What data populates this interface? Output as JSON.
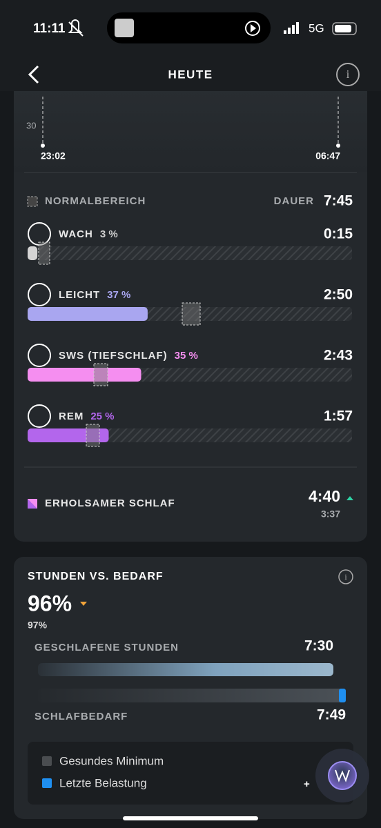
{
  "status_bar": {
    "time": "11:11",
    "network": "5G"
  },
  "nav": {
    "title": "HEUTE"
  },
  "chart": {
    "y_label": "30",
    "start": "23:02",
    "end": "06:47"
  },
  "stages_header": {
    "label": "NORMALBEREICH",
    "duration_label": "DAUER",
    "duration": "7:45"
  },
  "stages": [
    {
      "name": "WACH",
      "share": 3,
      "share_label": "3 %",
      "time": "0:15",
      "color": "#d4d4d4",
      "text_color": "#cfcfcf"
    },
    {
      "name": "LEICHT",
      "share": 37,
      "share_label": "37 %",
      "time": "2:50",
      "color": "#a9a6f0",
      "text_color": "#a9a6f0"
    },
    {
      "name": "SWS (TIEFSCHLAF)",
      "share": 35,
      "share_label": "35 %",
      "time": "2:43",
      "color": "#f58ef0",
      "text_color": "#f58ef0"
    },
    {
      "name": "REM",
      "share": 25,
      "share_label": "25 %",
      "time": "1:57",
      "color": "#b366ec",
      "text_color": "#b366ec"
    }
  ],
  "restorative": {
    "label": "ERHOLSAMER SCHLAF",
    "value": "4:40",
    "previous": "3:37"
  },
  "hours_card": {
    "title": "STUNDEN VS. BEDARF",
    "value": "96%",
    "previous": "97%",
    "slept_label": "GESCHLAFENE STUNDEN",
    "slept": "7:30",
    "need_label": "SCHLAFBEDARF",
    "need": "7:49",
    "legend": [
      "Gesundes Minimum",
      "Letzte Belastung"
    ],
    "legend_value": "+"
  }
}
